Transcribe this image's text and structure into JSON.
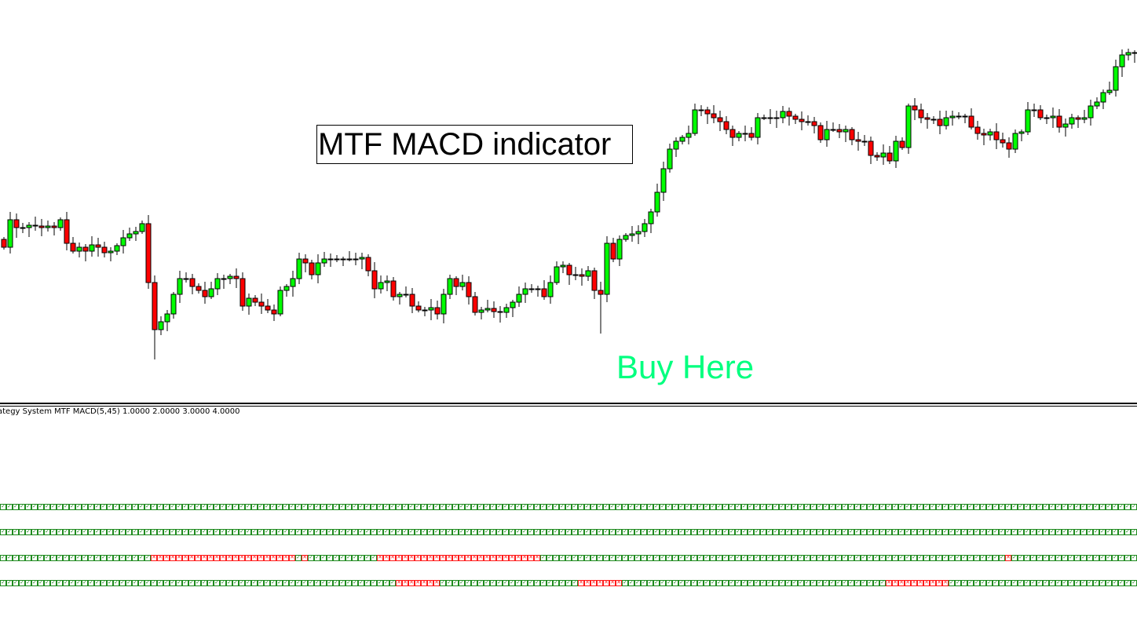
{
  "chart": {
    "title_box": "MTF MACD indicator",
    "annotation": "Buy Here",
    "colors": {
      "bull": "#00ff00",
      "bear": "#ff0000",
      "outline": "#000000",
      "annotation": "#00ff7f"
    }
  },
  "chart_data": {
    "type": "candlestick",
    "close": [
      185,
      220,
      210,
      210,
      213,
      212,
      210,
      212,
      210,
      220,
      190,
      180,
      185,
      180,
      188,
      185,
      178,
      180,
      187,
      197,
      202,
      205,
      215,
      140,
      80,
      90,
      100,
      125,
      145,
      145,
      135,
      130,
      122,
      132,
      145,
      145,
      148,
      145,
      110,
      120,
      115,
      110,
      105,
      100,
      130,
      135,
      145,
      170,
      165,
      150,
      165,
      170,
      170,
      170,
      170,
      170,
      170,
      172,
      155,
      132,
      140,
      142,
      122,
      125,
      125,
      110,
      105,
      105,
      108,
      100,
      125,
      145,
      135,
      140,
      122,
      102,
      105,
      107,
      103,
      102,
      108,
      115,
      125,
      132,
      132,
      132,
      122,
      140,
      160,
      162,
      150,
      150,
      148,
      155,
      130,
      125,
      190,
      170,
      195,
      200,
      202,
      205,
      215,
      230,
      255,
      285,
      310,
      320,
      325,
      330,
      360,
      360,
      355,
      350,
      345,
      335,
      325,
      330,
      330,
      325,
      350,
      350,
      350,
      350,
      358,
      352,
      348,
      345,
      345,
      340,
      322,
      335,
      335,
      332,
      335,
      322,
      320,
      320,
      302,
      300,
      305,
      295,
      320,
      312,
      365,
      360,
      350,
      348,
      348,
      340,
      350,
      352,
      352,
      352,
      338,
      330,
      328,
      332,
      322,
      318,
      310,
      330,
      332,
      360,
      360,
      350,
      350,
      352,
      338,
      342,
      350,
      348,
      350,
      365,
      370,
      382,
      385,
      415,
      430,
      433,
      432
    ]
  },
  "indicator": {
    "label": "ategy System MTF MACD(5,45) 1.0000 2.0000 3.0000 4.0000",
    "rows": [
      {
        "bear_ranges": []
      },
      {
        "bear_ranges": []
      },
      {
        "bear_ranges": [
          [
            24,
            46
          ],
          [
            48,
            48
          ],
          [
            60,
            85
          ],
          [
            160,
            160
          ]
        ]
      },
      {
        "bear_ranges": [
          [
            63,
            69
          ],
          [
            92,
            98
          ],
          [
            141,
            150
          ]
        ]
      }
    ],
    "icons": {
      "bull": "check-icon",
      "bear": "cross-icon"
    },
    "colors": {
      "bull": "#1e8a1e",
      "bear": "#ff1a1a"
    }
  }
}
